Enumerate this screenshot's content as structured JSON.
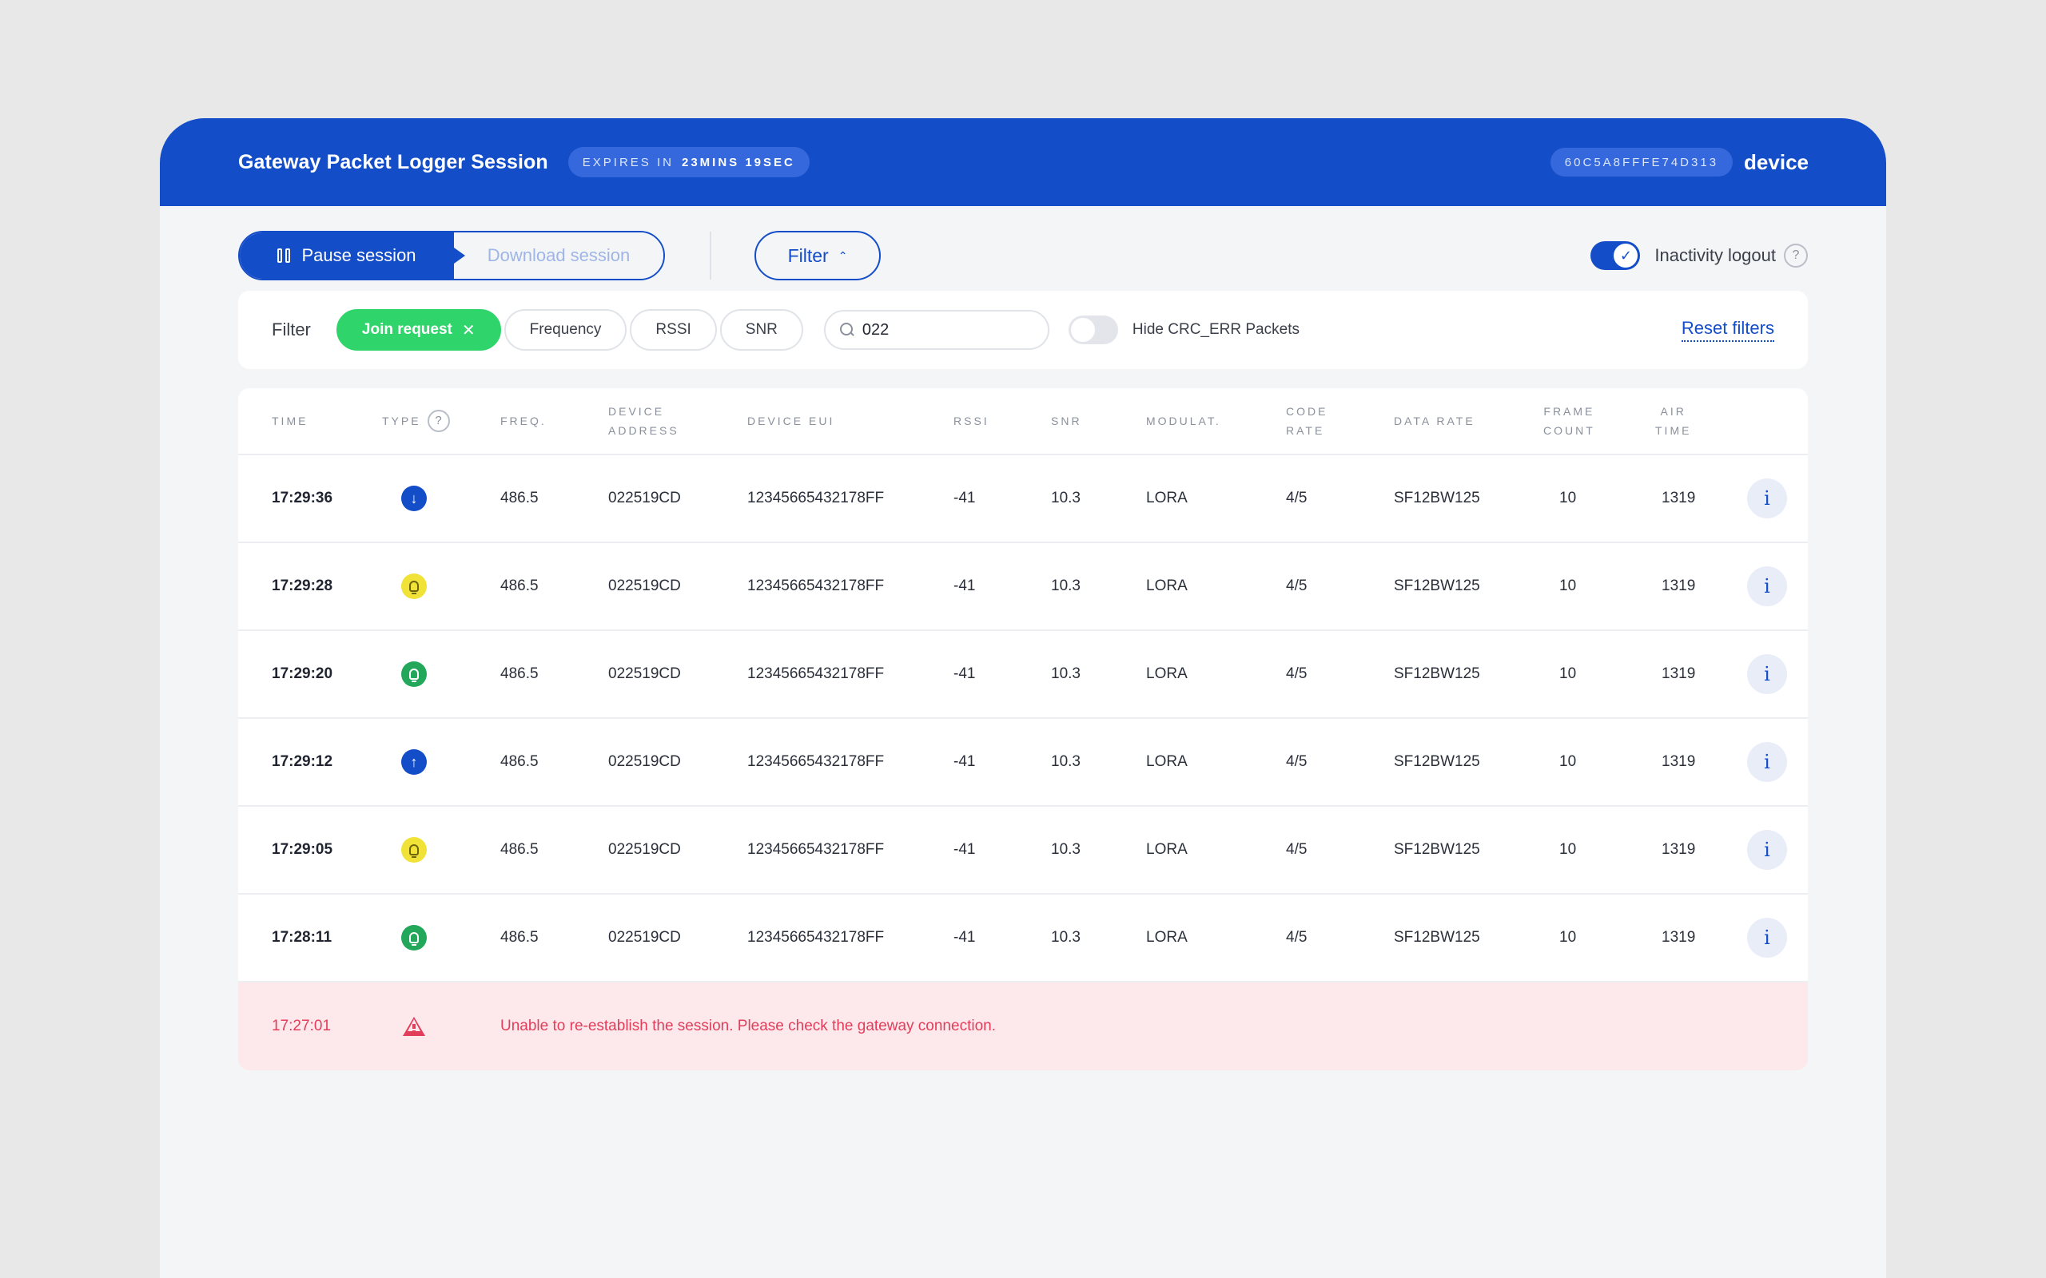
{
  "header": {
    "title": "Gateway Packet Logger Session",
    "expires_label": "EXPIRES IN",
    "expires_value": "23MINS 19SEC",
    "gateway_eui": "60C5A8FFFE74D313",
    "device_label": "device"
  },
  "toolbar": {
    "pause_label": "Pause session",
    "download_label": "Download session",
    "filter_label": "Filter",
    "inactivity_label": "Inactivity logout",
    "inactivity_enabled": true
  },
  "filters": {
    "label": "Filter",
    "chips": [
      {
        "label": "Join request",
        "active": true
      },
      {
        "label": "Frequency",
        "active": false
      },
      {
        "label": "RSSI",
        "active": false
      },
      {
        "label": "SNR",
        "active": false
      }
    ],
    "search_value": "022",
    "crc_label": "Hide CRC_ERR Packets",
    "crc_enabled": false,
    "reset_label": "Reset filters"
  },
  "table": {
    "columns": {
      "time": "TIME",
      "type": "TYPE",
      "freq": "FREQ.",
      "device_address_1": "DEVICE",
      "device_address_2": "ADDRESS",
      "device_eui": "DEVICE EUI",
      "rssi": "RSSI",
      "snr": "SNR",
      "modulation": "MODULAT.",
      "code_rate_1": "CODE",
      "code_rate_2": "RATE",
      "data_rate": "DATA RATE",
      "frame_count_1": "FRAME",
      "frame_count_2": "COUNT",
      "air_time_1": "AIR",
      "air_time_2": "TIME"
    },
    "rows": [
      {
        "time": "17:29:36",
        "type": "arrow-down-icon",
        "freq": "486.5",
        "addr": "022519CD",
        "eui": "12345665432178FF",
        "rssi": "-41",
        "snr": "10.3",
        "mod": "LORA",
        "code": "4/5",
        "rate": "SF12BW125",
        "fcnt": "10",
        "air": "1319"
      },
      {
        "time": "17:29:28",
        "type": "lightbulb-yellow-icon",
        "freq": "486.5",
        "addr": "022519CD",
        "eui": "12345665432178FF",
        "rssi": "-41",
        "snr": "10.3",
        "mod": "LORA",
        "code": "4/5",
        "rate": "SF12BW125",
        "fcnt": "10",
        "air": "1319"
      },
      {
        "time": "17:29:20",
        "type": "lightbulb-green-icon",
        "freq": "486.5",
        "addr": "022519CD",
        "eui": "12345665432178FF",
        "rssi": "-41",
        "snr": "10.3",
        "mod": "LORA",
        "code": "4/5",
        "rate": "SF12BW125",
        "fcnt": "10",
        "air": "1319"
      },
      {
        "time": "17:29:12",
        "type": "arrow-up-icon",
        "freq": "486.5",
        "addr": "022519CD",
        "eui": "12345665432178FF",
        "rssi": "-41",
        "snr": "10.3",
        "mod": "LORA",
        "code": "4/5",
        "rate": "SF12BW125",
        "fcnt": "10",
        "air": "1319"
      },
      {
        "time": "17:29:05",
        "type": "lightbulb-yellow-icon",
        "freq": "486.5",
        "addr": "022519CD",
        "eui": "12345665432178FF",
        "rssi": "-41",
        "snr": "10.3",
        "mod": "LORA",
        "code": "4/5",
        "rate": "SF12BW125",
        "fcnt": "10",
        "air": "1319"
      },
      {
        "time": "17:28:11",
        "type": "lightbulb-green-icon",
        "freq": "486.5",
        "addr": "022519CD",
        "eui": "12345665432178FF",
        "rssi": "-41",
        "snr": "10.3",
        "mod": "LORA",
        "code": "4/5",
        "rate": "SF12BW125",
        "fcnt": "10",
        "air": "1319"
      }
    ],
    "error_row": {
      "time": "17:27:01",
      "icon": "warning-icon",
      "message": "Unable to re-establish the session. Please check the gateway connection."
    }
  },
  "colors": {
    "brand": "#144dc8",
    "success": "#2fd46a",
    "warning_yellow": "#f0e236",
    "green": "#23a75a",
    "error": "#e23d5b",
    "error_bg": "#fde8eb"
  }
}
